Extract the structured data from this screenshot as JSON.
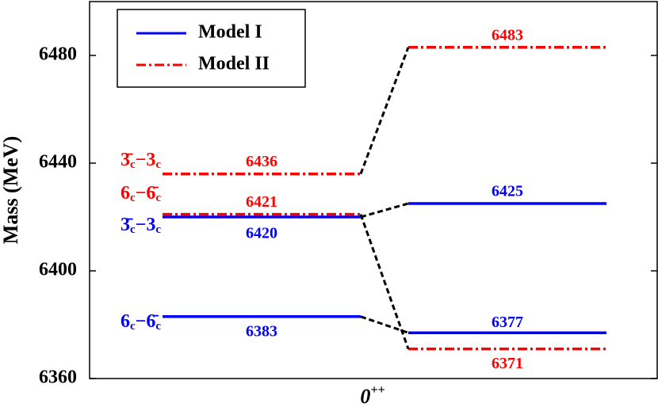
{
  "chart_data": {
    "type": "level",
    "ylabel": "Mass (MeV)",
    "xlabel": "0",
    "xlabel_sup": "++",
    "ylim": [
      6360,
      6500
    ],
    "yticks": [
      6360,
      6400,
      6440,
      6480
    ],
    "series": [
      {
        "name": "Model I",
        "color": "#0000ff",
        "dash": "solid",
        "left": [
          6420,
          6383
        ],
        "right": [
          6425,
          6377
        ],
        "left_labels": [
          [
            "3̄",
            "c",
            "−3",
            "c"
          ],
          [
            "6",
            "c",
            "−6̄",
            "c"
          ]
        ]
      },
      {
        "name": "Model II",
        "color": "#ff0000",
        "dash": "dashdot",
        "left": [
          6436,
          6421
        ],
        "right": [
          6483,
          6371
        ],
        "left_labels": [
          [
            "3̄",
            "c",
            "−3",
            "c"
          ],
          [
            "6",
            "c",
            "−6̄",
            "c"
          ]
        ]
      }
    ]
  }
}
